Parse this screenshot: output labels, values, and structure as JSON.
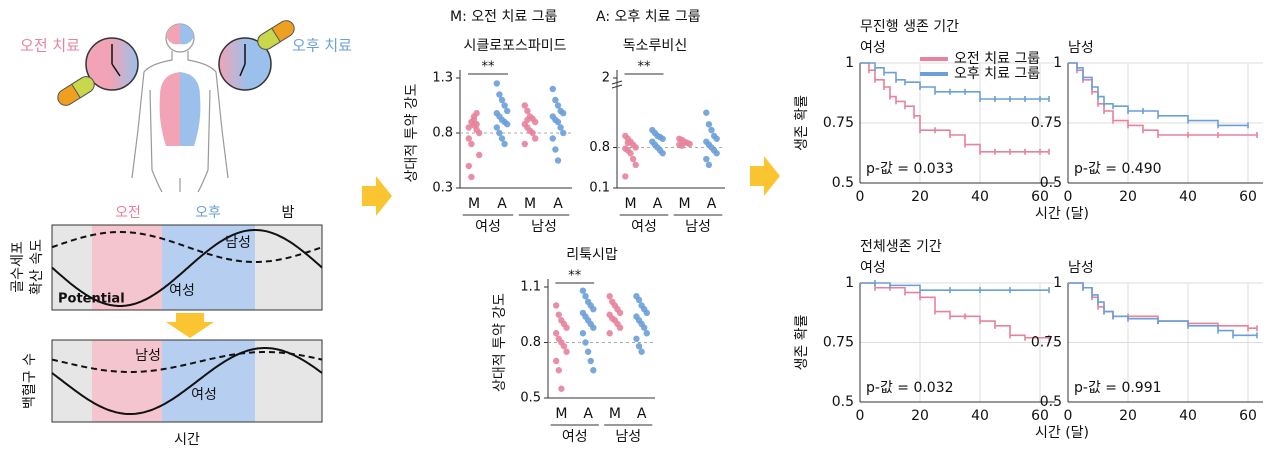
{
  "diagram": {
    "am_treatment": "오전 치료",
    "pm_treatment": "오후 치료",
    "phases": [
      "오전",
      "오후",
      "밤"
    ],
    "top_panel": {
      "y_label": [
        "골수세포",
        "확산 속도"
      ],
      "male": "남성",
      "female": "여성",
      "note": "Potential"
    },
    "bottom_panel": {
      "y_label": "백혈구 수",
      "male": "남성",
      "female": "여성",
      "x_label": "시간"
    }
  },
  "strip_legend": [
    "M: 오전 치료 그룹",
    "A: 오후 치료 그룹"
  ],
  "chart_data": [
    {
      "type": "strip",
      "title": "시클로포스파미드",
      "y_label": "상대적 투약 강도",
      "categories": [
        "M",
        "A",
        "M",
        "A"
      ],
      "groups": [
        "여성",
        "남성"
      ],
      "colors": [
        "#e8829b",
        "#6a9fd8",
        "#e8829b",
        "#6a9fd8"
      ],
      "values": [
        [
          0.85,
          0.9,
          0.95,
          0.88,
          0.8,
          0.75,
          0.7,
          0.92,
          0.98,
          0.6,
          0.5,
          0.4,
          0.87,
          0.83
        ],
        [
          1.25,
          1.15,
          1.1,
          1.05,
          1.0,
          0.98,
          0.95,
          0.92,
          0.9,
          0.88,
          0.85,
          0.8,
          0.75,
          0.7
        ],
        [
          1.05,
          1.0,
          0.95,
          0.93,
          0.9,
          0.88,
          0.85,
          0.82,
          0.8,
          0.75,
          0.7,
          0.92
        ],
        [
          1.2,
          1.1,
          1.05,
          1.0,
          0.98,
          0.95,
          0.92,
          0.9,
          0.85,
          0.8,
          0.75,
          0.65,
          0.55
        ]
      ],
      "ylim": [
        0.3,
        1.3
      ],
      "yticks": [
        0.3,
        0.8,
        1.3
      ],
      "reference_line": 0.8,
      "significance": "**"
    },
    {
      "type": "strip",
      "title": "독소루비신",
      "categories": [
        "M",
        "A",
        "M",
        "A"
      ],
      "groups": [
        "여성",
        "남성"
      ],
      "colors": [
        "#e8829b",
        "#6a9fd8",
        "#e8829b",
        "#6a9fd8"
      ],
      "values": [
        [
          1.0,
          0.95,
          0.9,
          0.85,
          0.8,
          0.78,
          0.75,
          0.7,
          0.6,
          0.5,
          0.3,
          0.88
        ],
        [
          1.1,
          1.05,
          1.0,
          0.98,
          0.95,
          0.9,
          0.85,
          0.8,
          0.75,
          0.7
        ],
        [
          0.95,
          0.93,
          0.9,
          0.88,
          0.86,
          0.85,
          0.83
        ],
        [
          1.4,
          1.2,
          1.1,
          1.0,
          0.95,
          0.9,
          0.85,
          0.8,
          0.75,
          0.7,
          0.6,
          0.5
        ]
      ],
      "ylim": [
        0.1,
        2
      ],
      "yticks": [
        0.1,
        0.8,
        2
      ],
      "axis_break": true,
      "reference_line": 0.8,
      "significance": "**"
    },
    {
      "type": "strip",
      "title": "리툭시맙",
      "y_label": "상대적 투약 강도",
      "categories": [
        "M",
        "A",
        "M",
        "A"
      ],
      "groups": [
        "여성",
        "남성"
      ],
      "colors": [
        "#e8829b",
        "#6a9fd8",
        "#e8829b",
        "#6a9fd8"
      ],
      "values": [
        [
          1.0,
          0.95,
          0.92,
          0.9,
          0.88,
          0.85,
          0.82,
          0.8,
          0.78,
          0.75,
          0.7,
          0.65,
          0.55
        ],
        [
          1.08,
          1.05,
          1.02,
          1.0,
          0.98,
          0.96,
          0.94,
          0.92,
          0.9,
          0.88,
          0.85,
          0.8,
          0.75,
          0.7,
          0.65
        ],
        [
          1.05,
          1.02,
          1.0,
          0.98,
          0.96,
          0.95,
          0.93,
          0.92,
          0.9,
          0.88,
          0.85
        ],
        [
          1.05,
          1.03,
          1.0,
          0.98,
          0.96,
          0.94,
          0.92,
          0.9,
          0.88,
          0.85,
          0.82,
          0.78,
          0.75
        ]
      ],
      "ylim": [
        0.5,
        1.1
      ],
      "yticks": [
        0.5,
        0.8,
        1.1
      ],
      "reference_line": 0.8,
      "significance": "**"
    },
    {
      "type": "survival",
      "section": "무진행 생존 기간",
      "title": "여성",
      "x_label": "시간 (달)",
      "y_label": "생존 확률",
      "annotation": "p-값 = 0.033",
      "legend": true,
      "series": [
        {
          "name": "오전 치료 그룹",
          "color": "#e8829b",
          "x": [
            0,
            3,
            5,
            8,
            10,
            12,
            15,
            18,
            20,
            25,
            30,
            35,
            40,
            45,
            50,
            55,
            60,
            63
          ],
          "values": [
            1,
            0.97,
            0.93,
            0.9,
            0.86,
            0.84,
            0.82,
            0.78,
            0.72,
            0.72,
            0.7,
            0.66,
            0.63,
            0.63,
            0.63,
            0.63,
            0.63,
            0.63
          ]
        },
        {
          "name": "오후 치료 그룹",
          "color": "#6a9fd8",
          "x": [
            0,
            5,
            8,
            12,
            15,
            20,
            25,
            30,
            35,
            40,
            45,
            50,
            55,
            60,
            63
          ],
          "values": [
            1,
            0.98,
            0.96,
            0.93,
            0.92,
            0.9,
            0.88,
            0.88,
            0.88,
            0.85,
            0.85,
            0.85,
            0.85,
            0.85,
            0.85
          ]
        }
      ],
      "xlim": [
        0,
        65
      ],
      "xticks": [
        0,
        20,
        40,
        60
      ],
      "ylim": [
        0.5,
        1
      ],
      "yticks": [
        0.5,
        0.75,
        1
      ],
      "grid": true
    },
    {
      "type": "survival",
      "title": "남성",
      "annotation": "p-값 = 0.490",
      "legend": false,
      "series": [
        {
          "color": "#e8829b",
          "x": [
            0,
            3,
            5,
            8,
            10,
            12,
            15,
            20,
            25,
            30,
            40,
            50,
            63
          ],
          "values": [
            1,
            0.97,
            0.93,
            0.88,
            0.83,
            0.8,
            0.76,
            0.74,
            0.72,
            0.7,
            0.7,
            0.7,
            0.7
          ]
        },
        {
          "color": "#6a9fd8",
          "x": [
            0,
            3,
            5,
            8,
            10,
            12,
            15,
            20,
            25,
            30,
            40,
            50,
            60
          ],
          "values": [
            1,
            0.98,
            0.94,
            0.9,
            0.86,
            0.83,
            0.82,
            0.8,
            0.8,
            0.78,
            0.76,
            0.74,
            0.74
          ]
        }
      ],
      "xlim": [
        0,
        65
      ],
      "xticks": [
        0,
        20,
        40,
        60
      ],
      "ylim": [
        0.5,
        1
      ],
      "yticks": [
        0.5,
        0.75,
        1
      ],
      "grid": true
    },
    {
      "type": "survival",
      "section": "전체생존 기간",
      "title": "여성",
      "x_label": "시간 (달)",
      "y_label": "생존 확률",
      "annotation": "p-값 = 0.032",
      "legend": false,
      "series": [
        {
          "color": "#e8829b",
          "x": [
            0,
            5,
            10,
            15,
            20,
            25,
            30,
            35,
            40,
            45,
            50,
            55,
            63
          ],
          "values": [
            1,
            0.98,
            0.98,
            0.96,
            0.94,
            0.88,
            0.86,
            0.86,
            0.84,
            0.82,
            0.78,
            0.77,
            0.77
          ]
        },
        {
          "color": "#6a9fd8",
          "x": [
            0,
            5,
            10,
            20,
            30,
            40,
            50,
            63
          ],
          "values": [
            1,
            1,
            0.99,
            0.97,
            0.97,
            0.97,
            0.97,
            0.97
          ]
        }
      ],
      "xlim": [
        0,
        65
      ],
      "xticks": [
        0,
        20,
        40,
        60
      ],
      "ylim": [
        0.5,
        1
      ],
      "yticks": [
        0.5,
        0.75,
        1
      ],
      "grid": true
    },
    {
      "type": "survival",
      "title": "남성",
      "annotation": "p-값 = 0.991",
      "legend": false,
      "series": [
        {
          "color": "#e8829b",
          "x": [
            0,
            5,
            8,
            10,
            12,
            15,
            20,
            30,
            40,
            50,
            60,
            63
          ],
          "values": [
            1,
            0.98,
            0.94,
            0.9,
            0.88,
            0.86,
            0.86,
            0.84,
            0.83,
            0.82,
            0.81,
            0.81
          ]
        },
        {
          "color": "#6a9fd8",
          "x": [
            0,
            5,
            8,
            10,
            12,
            15,
            20,
            30,
            40,
            50,
            55,
            63
          ],
          "values": [
            1,
            0.98,
            0.95,
            0.92,
            0.88,
            0.86,
            0.85,
            0.84,
            0.82,
            0.8,
            0.78,
            0.78
          ]
        }
      ],
      "xlim": [
        0,
        65
      ],
      "xticks": [
        0,
        20,
        40,
        60
      ],
      "ylim": [
        0.5,
        1
      ],
      "yticks": [
        0.5,
        0.75,
        1
      ],
      "grid": true
    }
  ]
}
